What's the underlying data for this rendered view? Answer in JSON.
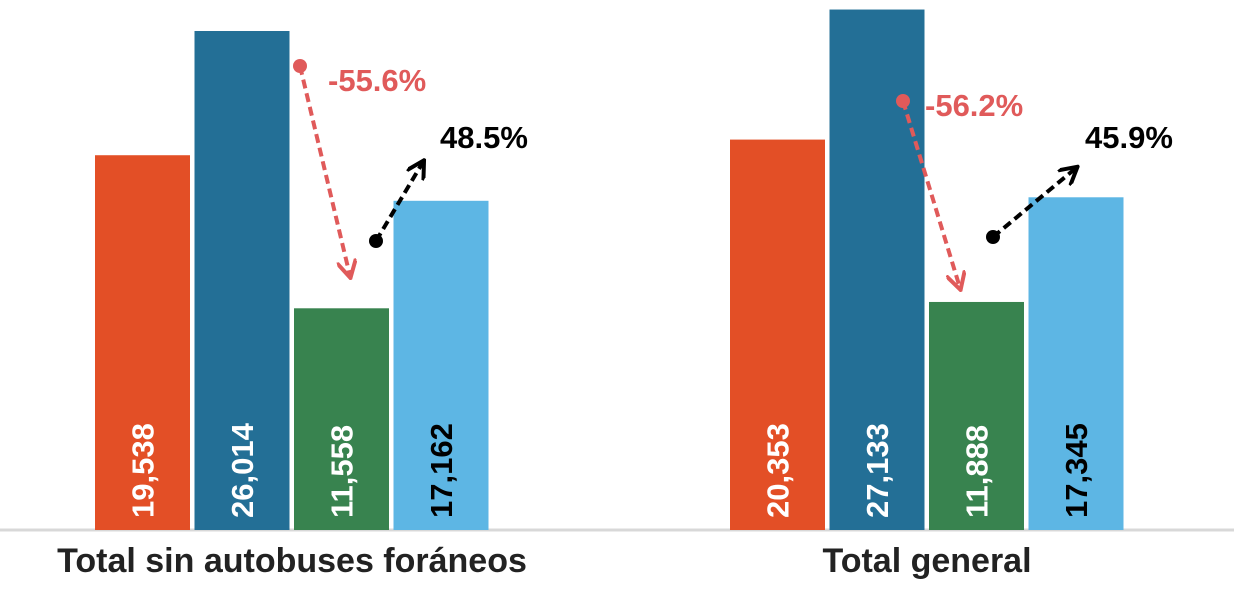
{
  "chart_data": {
    "type": "bar",
    "categories": [
      "Total sin autobuses foráneos",
      "Total general"
    ],
    "series": [
      {
        "color": "#e34f26",
        "values": [
          19538,
          20353
        ],
        "value_labels": [
          "19,538",
          "20,353"
        ]
      },
      {
        "color": "#236f96",
        "values": [
          26014,
          27133
        ],
        "value_labels": [
          "26,014",
          "27,133"
        ]
      },
      {
        "color": "#38834f",
        "values": [
          11558,
          11888
        ],
        "value_labels": [
          "11,558",
          "11,888"
        ]
      },
      {
        "color": "#5db6e4",
        "values": [
          17162,
          17345
        ],
        "value_labels": [
          "17,162",
          "17,345"
        ]
      }
    ],
    "annotations": [
      [
        "-55.6%",
        "48.5%"
      ],
      [
        "-56.2%",
        "45.9%"
      ]
    ],
    "ylim": [
      0,
      27630
    ]
  }
}
